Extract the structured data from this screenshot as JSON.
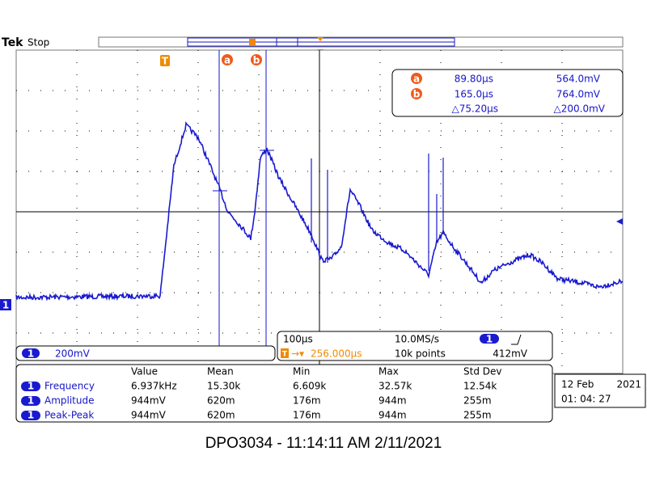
{
  "header": {
    "brand": "Tek",
    "status": "Stop"
  },
  "markers": {
    "trigger": "T"
  },
  "cursor_readout": {
    "a": {
      "label": "a",
      "time": "89.80µs",
      "volt": "564.0mV"
    },
    "b": {
      "label": "b",
      "time": "165.0µs",
      "volt": "764.0mV"
    },
    "delta": {
      "time": "△75.20µs",
      "volt": "△200.0mV"
    }
  },
  "channel": {
    "id": "1",
    "scale": "200mV"
  },
  "timebase": {
    "scale": "100µs",
    "rate": "10.0MS/s",
    "trigger_source": "1",
    "position_prefix": "→▾",
    "position": "256.000µs",
    "points": "10k points",
    "trigger_level": "412mV"
  },
  "measurements": {
    "headers": [
      "Value",
      "Mean",
      "Min",
      "Max",
      "Std Dev"
    ],
    "rows": [
      {
        "channel": "1",
        "name": "Frequency",
        "cells": [
          "6.937kHz",
          "15.30k",
          "6.609k",
          "32.57k",
          "12.54k"
        ]
      },
      {
        "channel": "1",
        "name": "Amplitude",
        "cells": [
          "944mV",
          "620m",
          "176m",
          "944m",
          "255m"
        ]
      },
      {
        "channel": "1",
        "name": "Peak-Peak",
        "cells": [
          "944mV",
          "620m",
          "176m",
          "944m",
          "255m"
        ]
      }
    ]
  },
  "datetime": {
    "date": "12 Feb",
    "year": "2021",
    "time": "01: 04: 27"
  },
  "caption": "DPO3034 - 11:14:11 AM   2/11/2021"
}
